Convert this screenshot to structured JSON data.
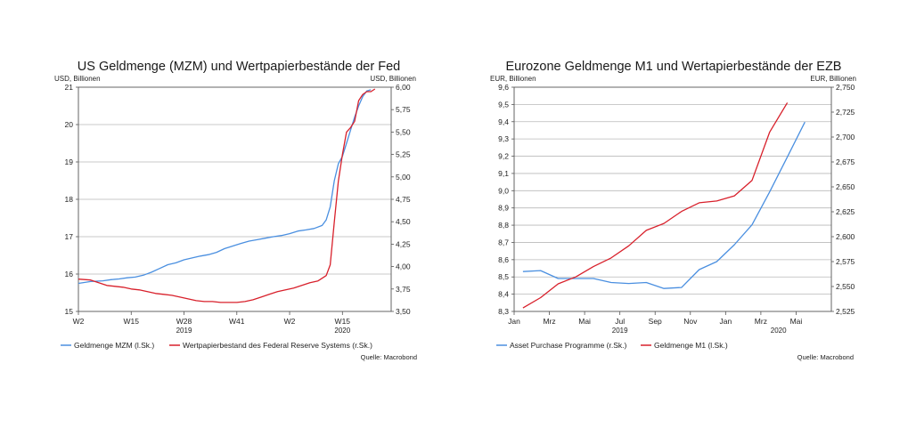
{
  "chart_data": [
    {
      "type": "line",
      "title": "US Geldmenge (MZM) und Wertpapierbestände der Fed",
      "ylabel_left": "USD, Billionen",
      "ylabel_right": "USD, Billionen",
      "ylim_left": [
        15,
        21
      ],
      "yticks_left": [
        "15",
        "16",
        "17",
        "18",
        "19",
        "20",
        "21"
      ],
      "ylim_right": [
        3.5,
        6.0
      ],
      "yticks_right": [
        "3,50",
        "3,75",
        "4,00",
        "4,25",
        "4,50",
        "4,75",
        "5,00",
        "5,25",
        "5,50",
        "5,75",
        "6,00"
      ],
      "x_ticks": [
        {
          "x": 0,
          "label": "W2"
        },
        {
          "x": 13,
          "label": "W15"
        },
        {
          "x": 26,
          "label": "W28"
        },
        {
          "x": 39,
          "label": "W41"
        },
        {
          "x": 52,
          "label": "W2"
        },
        {
          "x": 65,
          "label": "W15"
        }
      ],
      "year_labels": [
        {
          "x": 26,
          "label": "2019"
        },
        {
          "x": 65,
          "label": "2020"
        }
      ],
      "xlim": [
        0,
        77
      ],
      "grid": true,
      "legend_position": "bottom-left",
      "source": "Quelle: Macrobond",
      "series": [
        {
          "name": "Geldmenge MZM (l.Sk.)",
          "axis": "left",
          "color": "#4a8fe0",
          "x": [
            0,
            3,
            6,
            8,
            10,
            12,
            14,
            16,
            18,
            20,
            22,
            24,
            26,
            28,
            30,
            32,
            34,
            36,
            38,
            40,
            42,
            44,
            46,
            48,
            50,
            52,
            54,
            56,
            58,
            60,
            61,
            62,
            63,
            64,
            65,
            66,
            67,
            68,
            69,
            70,
            71,
            72
          ],
          "values": [
            15.75,
            15.8,
            15.82,
            15.85,
            15.87,
            15.9,
            15.92,
            15.97,
            16.05,
            16.15,
            16.25,
            16.3,
            16.38,
            16.43,
            16.48,
            16.52,
            16.58,
            16.68,
            16.75,
            16.82,
            16.88,
            16.92,
            16.96,
            17.0,
            17.03,
            17.08,
            17.15,
            17.18,
            17.22,
            17.3,
            17.45,
            17.8,
            18.5,
            18.95,
            19.15,
            19.5,
            19.85,
            20.2,
            20.5,
            20.75,
            20.9,
            20.93
          ]
        },
        {
          "name": "Wertpapierbestand des Federal Reserve Systems (r.Sk.)",
          "axis": "right",
          "color": "#d8202b",
          "x": [
            0,
            3,
            5,
            7,
            9,
            11,
            13,
            15,
            17,
            19,
            21,
            23,
            25,
            27,
            29,
            31,
            33,
            35,
            37,
            39,
            41,
            43,
            45,
            47,
            49,
            51,
            53,
            55,
            57,
            59,
            61,
            62,
            63,
            64,
            65,
            66,
            67,
            68,
            69,
            70,
            71,
            72,
            73
          ],
          "values": [
            3.86,
            3.85,
            3.82,
            3.79,
            3.78,
            3.77,
            3.75,
            3.74,
            3.72,
            3.7,
            3.69,
            3.68,
            3.66,
            3.64,
            3.62,
            3.61,
            3.61,
            3.6,
            3.6,
            3.6,
            3.61,
            3.63,
            3.66,
            3.69,
            3.72,
            3.74,
            3.76,
            3.79,
            3.82,
            3.84,
            3.9,
            4.02,
            4.5,
            4.95,
            5.25,
            5.5,
            5.55,
            5.62,
            5.85,
            5.92,
            5.95,
            5.95,
            5.98
          ]
        }
      ]
    },
    {
      "type": "line",
      "title": "Eurozone Geldmenge M1 und Wertapierbestände der EZB",
      "ylabel_left": "EUR, Billionen",
      "ylabel_right": "EUR, Billionen",
      "ylim_left": [
        8.3,
        9.6
      ],
      "yticks_left": [
        "8,3",
        "8,4",
        "8,5",
        "8,6",
        "8,7",
        "8,8",
        "8,9",
        "9,0",
        "9,1",
        "9,2",
        "9,3",
        "9,4",
        "9,5",
        "9,6"
      ],
      "ylim_right": [
        2.525,
        2.75
      ],
      "yticks_right": [
        "2,525",
        "2,550",
        "2,575",
        "2,600",
        "2,625",
        "2,650",
        "2,675",
        "2,700",
        "2,725",
        "2,750"
      ],
      "x_ticks": [
        {
          "x": 0,
          "label": "Jan"
        },
        {
          "x": 2,
          "label": "Mrz"
        },
        {
          "x": 4,
          "label": "Mai"
        },
        {
          "x": 6,
          "label": "Jul"
        },
        {
          "x": 8,
          "label": "Sep"
        },
        {
          "x": 10,
          "label": "Nov"
        },
        {
          "x": 12,
          "label": "Jan"
        },
        {
          "x": 14,
          "label": "Mrz"
        },
        {
          "x": 16,
          "label": "Mai"
        }
      ],
      "year_labels": [
        {
          "x": 6,
          "label": "2019"
        },
        {
          "x": 15,
          "label": "2020"
        }
      ],
      "xlim": [
        0,
        18
      ],
      "grid": true,
      "legend_position": "bottom-left",
      "source": "Quelle: Macrobond",
      "series": [
        {
          "name": "Asset Purchase Programme (r.Sk.)",
          "axis": "right",
          "color": "#4a8fe0",
          "x": [
            0.5,
            1.5,
            2.5,
            3.5,
            4.5,
            5.5,
            6.5,
            7.5,
            8.5,
            9.5,
            10.5,
            11.5,
            12.5,
            13.5,
            14.5,
            15.5,
            16.5
          ],
          "values": [
            2.565,
            2.566,
            2.558,
            2.558,
            2.558,
            2.554,
            2.553,
            2.554,
            2.548,
            2.549,
            2.567,
            2.575,
            2.592,
            2.612,
            2.645,
            2.68,
            2.715
          ]
        },
        {
          "name": "Geldmenge M1 (l.Sk.)",
          "axis": "left",
          "color": "#d8202b",
          "x": [
            0.5,
            1.5,
            2.5,
            3.5,
            4.5,
            5.5,
            6.5,
            7.5,
            8.5,
            9.5,
            10.5,
            11.5,
            12.5,
            13.5,
            14.5,
            15.5
          ],
          "values": [
            8.32,
            8.38,
            8.46,
            8.5,
            8.56,
            8.61,
            8.68,
            8.77,
            8.81,
            8.88,
            8.93,
            8.94,
            8.97,
            9.06,
            9.34,
            9.51
          ]
        }
      ]
    }
  ]
}
